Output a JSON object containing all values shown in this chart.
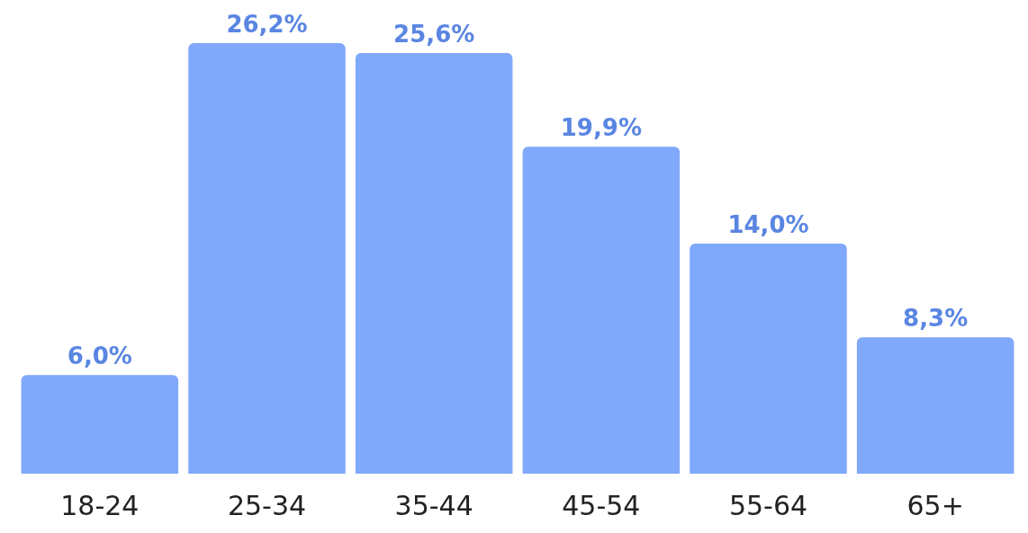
{
  "chart_data": {
    "type": "bar",
    "categories": [
      "18-24",
      "25-34",
      "35-44",
      "45-54",
      "55-64",
      "65+"
    ],
    "values": [
      6.0,
      26.2,
      25.6,
      19.9,
      14.0,
      8.3
    ],
    "value_labels": [
      "6,0%",
      "26,2%",
      "25,6%",
      "19,9%",
      "14,0%",
      "8,3%"
    ],
    "color": "#80a8fb"
  }
}
